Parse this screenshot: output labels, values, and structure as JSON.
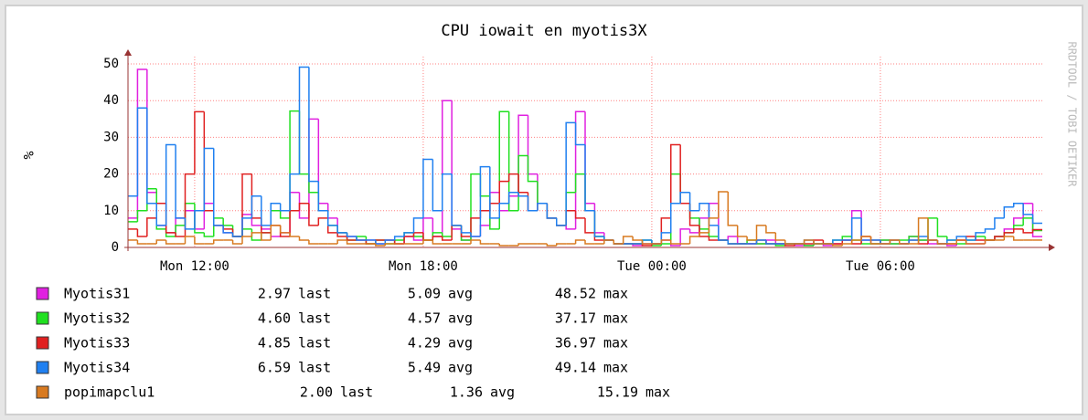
{
  "chart_data": {
    "type": "line",
    "title": "CPU iowait en myotis3X",
    "ylabel": "%",
    "watermark": "RRDTOOL / TOBI OETIKER",
    "step": true,
    "grid": true,
    "ylim": [
      0,
      52
    ],
    "yticks": [
      0,
      10,
      20,
      30,
      40,
      50
    ],
    "categories": [
      null,
      null,
      null,
      null,
      null,
      null,
      null,
      "Mon 12:00",
      null,
      null,
      null,
      null,
      null,
      null,
      null,
      null,
      null,
      null,
      null,
      null,
      null,
      null,
      null,
      null,
      null,
      null,
      null,
      null,
      null,
      null,
      null,
      "Mon 18:00",
      null,
      null,
      null,
      null,
      null,
      null,
      null,
      null,
      null,
      null,
      null,
      null,
      null,
      null,
      null,
      null,
      null,
      null,
      null,
      null,
      null,
      null,
      null,
      "Tue 00:00",
      null,
      null,
      null,
      null,
      null,
      null,
      null,
      null,
      null,
      null,
      null,
      null,
      null,
      null,
      null,
      null,
      null,
      null,
      null,
      null,
      null,
      null,
      null,
      "Tue 06:00",
      null,
      null,
      null,
      null,
      null,
      null,
      null,
      null,
      null,
      null,
      null,
      null,
      null,
      null,
      null,
      null
    ],
    "stat_labels": [
      "last",
      "avg",
      "max"
    ],
    "series": [
      {
        "name": "Myotis31",
        "color": "#e020e0",
        "stats": [
          "2.97",
          "5.09",
          "48.52"
        ],
        "values": [
          8,
          48.52,
          15,
          6,
          4,
          8,
          10,
          5,
          12,
          6,
          4,
          3,
          9,
          6,
          5,
          3,
          4,
          15,
          8,
          35,
          12,
          8,
          4,
          3,
          2,
          2,
          1,
          2,
          1,
          3,
          2,
          8,
          3,
          40,
          5,
          2,
          3,
          6,
          15,
          10,
          14,
          36,
          20,
          12,
          8,
          6,
          5,
          37,
          12,
          4,
          2,
          1,
          1,
          0.5,
          1,
          1,
          2,
          0.5,
          5,
          4,
          8,
          12,
          2,
          3,
          1,
          1,
          1,
          2,
          1,
          1,
          0.5,
          0.5,
          1,
          0.5,
          1,
          2,
          10,
          2,
          1,
          2,
          1,
          1,
          3,
          2,
          1,
          1,
          0.5,
          2,
          1,
          1,
          2,
          3,
          5,
          8,
          12,
          2.97
        ]
      },
      {
        "name": "Myotis32",
        "color": "#20e020",
        "stats": [
          "4.60",
          "4.57",
          "37.17"
        ],
        "values": [
          7,
          10,
          16,
          5,
          3,
          6,
          12,
          4,
          3,
          8,
          6,
          3,
          5,
          2,
          4,
          10,
          8,
          37.17,
          20,
          15,
          10,
          6,
          4,
          2,
          3,
          1,
          2,
          1,
          2,
          4,
          3,
          2,
          4,
          3,
          6,
          2,
          20,
          14,
          5,
          37,
          10,
          25,
          18,
          12,
          8,
          6,
          15,
          20,
          10,
          3,
          2,
          1,
          1,
          1,
          2,
          0.5,
          1,
          20,
          12,
          8,
          5,
          3,
          2,
          1,
          1,
          2,
          1,
          1,
          0.5,
          1,
          1,
          0.5,
          1,
          1,
          2,
          3,
          2,
          1,
          1,
          2,
          1,
          2,
          3,
          2,
          8,
          3,
          2,
          1,
          2,
          3,
          2,
          3,
          4,
          6,
          8,
          4.6
        ]
      },
      {
        "name": "Myotis33",
        "color": "#e02020",
        "stats": [
          "4.85",
          "4.29",
          "36.97"
        ],
        "values": [
          5,
          3,
          8,
          12,
          4,
          3,
          20,
          36.97,
          10,
          6,
          5,
          3,
          20,
          8,
          4,
          6,
          3,
          10,
          12,
          6,
          8,
          4,
          3,
          2,
          2,
          1,
          2,
          2,
          1,
          3,
          4,
          2,
          3,
          2,
          6,
          3,
          8,
          10,
          12,
          18,
          20,
          15,
          10,
          12,
          8,
          6,
          10,
          8,
          4,
          2,
          2,
          1,
          1,
          1,
          0.5,
          1,
          8,
          28,
          12,
          6,
          3,
          2,
          2,
          1,
          1,
          1,
          2,
          1,
          1,
          0.5,
          1,
          1,
          2,
          1,
          1,
          2,
          1,
          3,
          2,
          1,
          2,
          1,
          2,
          1,
          2,
          1,
          1,
          2,
          3,
          2,
          2,
          3,
          4,
          5,
          4,
          4.85
        ]
      },
      {
        "name": "Myotis34",
        "color": "#2080f0",
        "stats": [
          "6.59",
          "5.49",
          "49.14"
        ],
        "values": [
          14,
          38,
          12,
          6,
          28,
          8,
          5,
          10,
          27,
          6,
          4,
          3,
          8,
          14,
          6,
          12,
          10,
          20,
          49.14,
          18,
          10,
          6,
          4,
          3,
          2,
          2,
          1,
          2,
          3,
          4,
          8,
          24,
          10,
          20,
          6,
          4,
          3,
          22,
          8,
          12,
          15,
          14,
          10,
          12,
          8,
          6,
          34,
          28,
          10,
          3,
          2,
          1,
          1,
          1,
          2,
          1,
          4,
          12,
          15,
          10,
          12,
          6,
          2,
          1,
          1,
          1,
          2,
          1,
          1,
          1,
          1,
          2,
          1,
          1,
          2,
          2,
          8,
          2,
          2,
          1,
          2,
          1,
          2,
          3,
          2,
          1,
          2,
          3,
          2,
          4,
          5,
          8,
          11,
          12,
          9,
          6.59
        ]
      },
      {
        "name": "popimapclu1",
        "color": "#d87a20",
        "stats": [
          "2.00",
          "1.36",
          "15.19"
        ],
        "values": [
          2,
          1,
          1,
          2,
          1,
          1,
          3,
          1,
          1,
          2,
          2,
          1,
          3,
          4,
          2,
          6,
          4,
          3,
          2,
          1,
          1,
          1,
          2,
          1,
          1,
          1,
          0.5,
          1,
          1,
          1,
          1,
          2,
          1,
          1,
          1,
          1,
          2,
          1,
          1,
          0.5,
          0.5,
          1,
          1,
          1,
          0.5,
          1,
          1,
          2,
          1,
          1,
          2,
          1,
          3,
          2,
          1,
          1,
          2,
          1,
          1,
          3,
          4,
          8,
          15.19,
          6,
          3,
          2,
          6,
          4,
          2,
          1,
          1,
          2,
          1,
          1,
          0.5,
          1,
          2,
          3,
          1,
          1,
          2,
          1,
          1,
          8,
          2,
          1,
          1,
          2,
          1,
          1,
          2,
          2,
          3,
          2,
          2,
          2.0
        ]
      }
    ]
  }
}
